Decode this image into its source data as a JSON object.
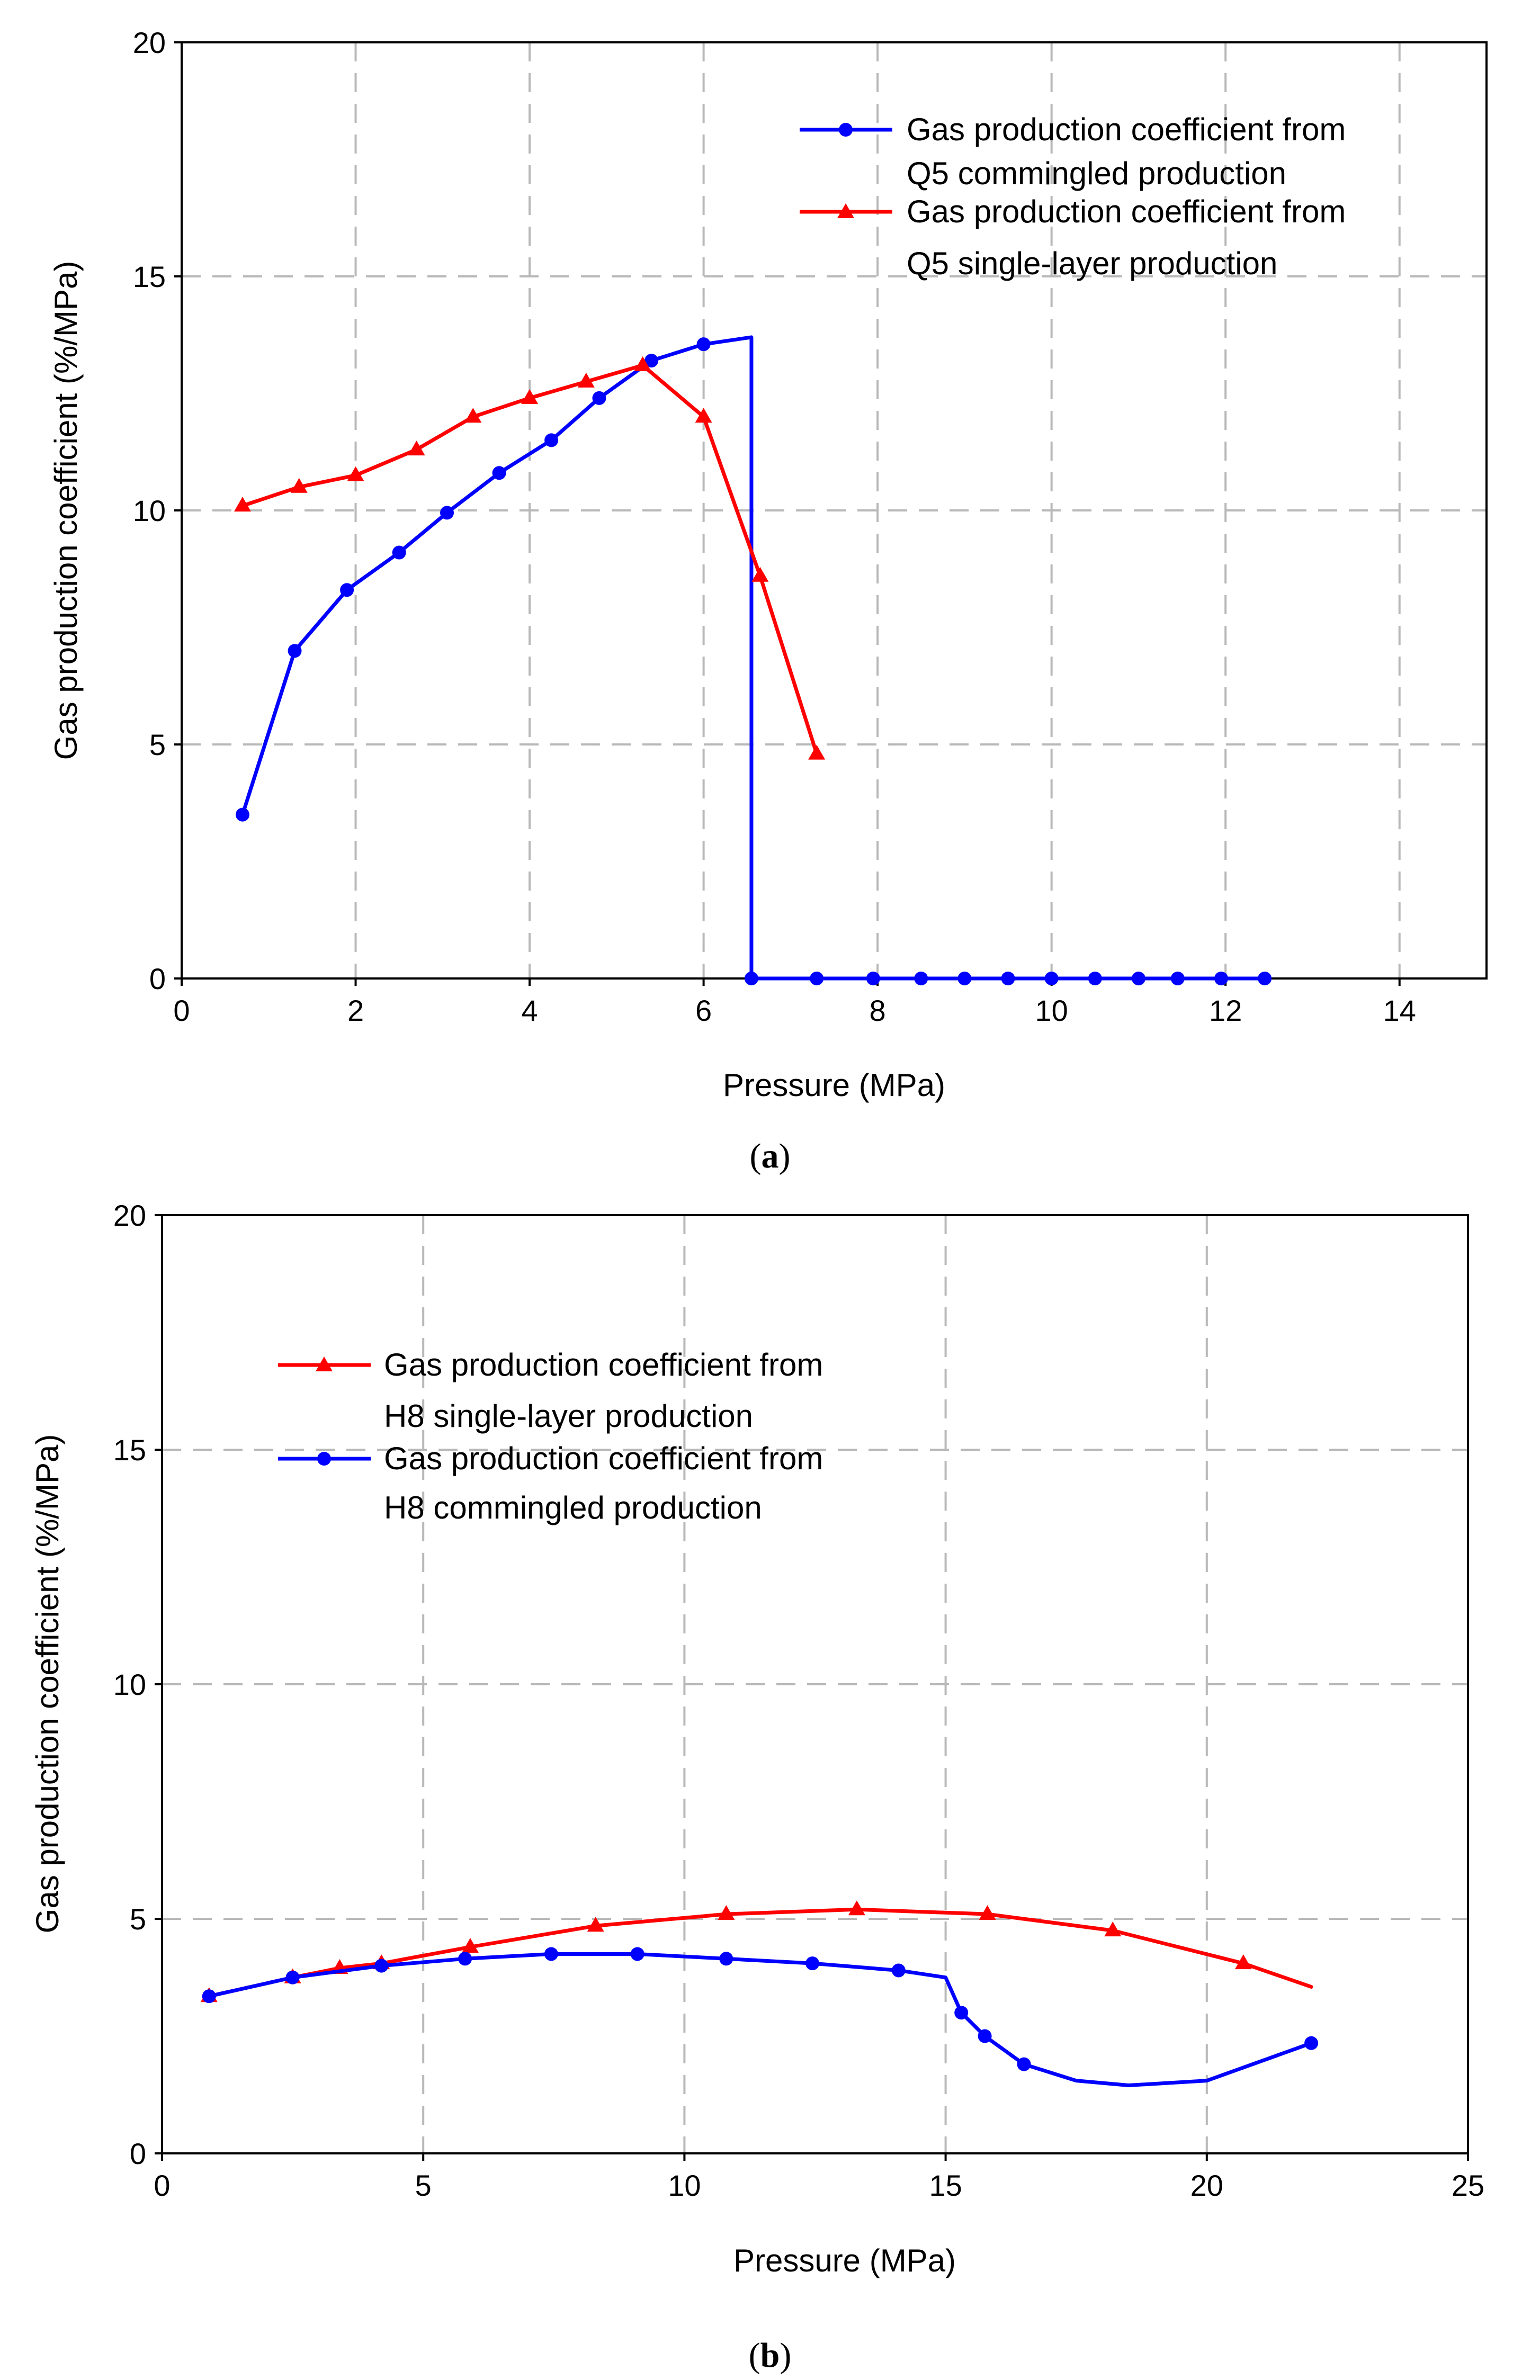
{
  "chart_data": [
    {
      "type": "line",
      "caption": "a",
      "xlabel": "Pressure (MPa)",
      "ylabel": "Gas production coefficient (%/MPa)",
      "xlim": [
        0,
        15
      ],
      "ylim": [
        0,
        20
      ],
      "xticks": [
        0,
        2,
        4,
        6,
        8,
        10,
        12,
        14
      ],
      "yticks": [
        0,
        5,
        10,
        15,
        20
      ],
      "grid": true,
      "legend_position": "top-right",
      "series": [
        {
          "name_line1": "Gas production coefficient from",
          "name_line2": "Q5 commingled production",
          "color": "#0000ff",
          "marker": "circle",
          "x": [
            0.7,
            1.3,
            1.9,
            2.5,
            3.05,
            3.65,
            4.25,
            4.8,
            5.4,
            6.0,
            6.55,
            6.55,
            7.3,
            7.95,
            8.5,
            9.0,
            9.5,
            10.0,
            10.5,
            11.0,
            11.45,
            11.95,
            12.45
          ],
          "y": [
            3.5,
            7.0,
            8.3,
            9.1,
            9.95,
            10.8,
            11.5,
            12.4,
            13.2,
            13.55,
            13.7,
            0,
            0,
            0,
            0,
            0,
            0,
            0,
            0,
            0,
            0,
            0,
            0
          ],
          "markers": [
            0,
            1,
            2,
            3,
            4,
            5,
            6,
            7,
            8,
            9,
            11,
            12,
            13,
            14,
            15,
            16,
            17,
            18,
            19,
            20,
            21,
            22
          ]
        },
        {
          "name_line1": "Gas production coefficient from",
          "name_line2": "Q5 single-layer production",
          "color": "#ff0000",
          "marker": "triangle",
          "x": [
            0.7,
            1.35,
            2.0,
            2.7,
            3.35,
            4.0,
            4.65,
            5.3,
            6.0,
            6.65,
            7.3
          ],
          "y": [
            10.1,
            10.5,
            10.75,
            11.3,
            12.0,
            12.4,
            12.75,
            13.1,
            12.0,
            8.6,
            4.8
          ],
          "markers": [
            0,
            1,
            2,
            3,
            4,
            5,
            6,
            7,
            8,
            9,
            10
          ]
        }
      ]
    },
    {
      "type": "line",
      "caption": "b",
      "xlabel": "Pressure (MPa)",
      "ylabel": "Gas production coefficient (%/MPa)",
      "xlim": [
        0,
        25
      ],
      "ylim": [
        0,
        20
      ],
      "xticks": [
        0,
        5,
        10,
        15,
        20,
        25
      ],
      "yticks": [
        0,
        5,
        10,
        15,
        20
      ],
      "grid": true,
      "legend_position": "top-left",
      "series": [
        {
          "name_line1": "Gas production coefficient from",
          "name_line2": "H8 single-layer production",
          "color": "#ff0000",
          "marker": "triangle",
          "x": [
            0.9,
            2.5,
            3.4,
            4.2,
            5.9,
            8.3,
            10.8,
            13.3,
            15.8,
            18.2,
            20.7,
            22.0
          ],
          "y": [
            3.35,
            3.75,
            3.95,
            4.05,
            4.4,
            4.85,
            5.1,
            5.2,
            5.1,
            4.75,
            4.05,
            3.55
          ],
          "markers": [
            0,
            1,
            2,
            3,
            4,
            5,
            6,
            7,
            8,
            9,
            10
          ]
        },
        {
          "name_line1": "Gas production coefficient from",
          "name_line2": "H8 commingled production",
          "color": "#0000ff",
          "marker": "circle",
          "x": [
            0.9,
            2.5,
            4.2,
            5.8,
            7.45,
            9.1,
            10.8,
            12.45,
            14.1,
            15.0,
            15.3,
            15.75,
            16.5,
            17.5,
            18.5,
            20.0,
            22.0
          ],
          "y": [
            3.35,
            3.75,
            4.0,
            4.15,
            4.25,
            4.25,
            4.15,
            4.05,
            3.9,
            3.75,
            3.0,
            2.5,
            1.9,
            1.55,
            1.45,
            1.55,
            2.35
          ],
          "markers": [
            0,
            1,
            2,
            3,
            4,
            5,
            6,
            7,
            8,
            10,
            11,
            12,
            16
          ]
        }
      ]
    }
  ]
}
